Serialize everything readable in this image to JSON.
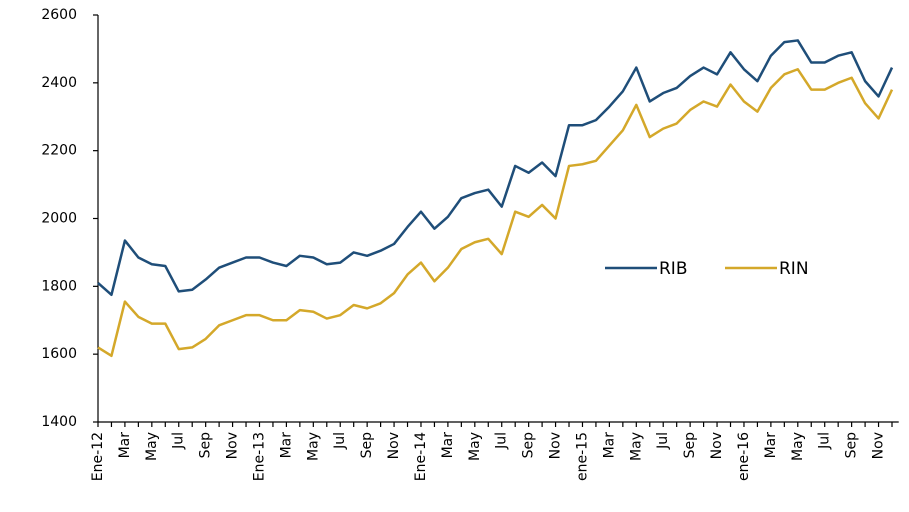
{
  "chart_data": {
    "type": "line",
    "categories": [
      "Ene-12",
      null,
      "Mar",
      null,
      "May",
      null,
      "Jul",
      null,
      "Sep",
      null,
      "Nov",
      null,
      "Ene-13",
      null,
      "Mar",
      null,
      "May",
      null,
      "Jul",
      null,
      "Sep",
      null,
      "Nov",
      null,
      "Ene-14",
      null,
      "Mar",
      null,
      "May",
      null,
      "Jul",
      null,
      "Sep",
      null,
      "Nov",
      null,
      "ene-15",
      null,
      "Mar",
      null,
      "May",
      null,
      "Jul",
      null,
      "Sep",
      null,
      "Nov",
      null,
      "ene-16",
      null,
      "Mar",
      null,
      "May",
      null,
      "Jul",
      null,
      "Sep",
      null,
      "Nov",
      null
    ],
    "series": [
      {
        "name": "RIB",
        "color": "#1f4e79",
        "values": [
          1810,
          1775,
          1935,
          1885,
          1865,
          1860,
          1785,
          1790,
          1820,
          1855,
          1870,
          1885,
          1885,
          1870,
          1860,
          1890,
          1885,
          1865,
          1870,
          1900,
          1890,
          1905,
          1925,
          1975,
          2020,
          1970,
          2005,
          2060,
          2075,
          2085,
          2035,
          2155,
          2135,
          2165,
          2125,
          2275,
          2275,
          2290,
          2330,
          2375,
          2445,
          2345,
          2370,
          2385,
          2420,
          2445,
          2425,
          2490,
          2440,
          2405,
          2480,
          2520,
          2525,
          2460,
          2460,
          2480,
          2490,
          2405,
          2360,
          2445
        ]
      },
      {
        "name": "RIN",
        "color": "#d4a82a",
        "values": [
          1620,
          1595,
          1755,
          1710,
          1690,
          1690,
          1615,
          1620,
          1645,
          1685,
          1700,
          1715,
          1715,
          1700,
          1700,
          1730,
          1725,
          1705,
          1715,
          1745,
          1735,
          1750,
          1780,
          1835,
          1870,
          1815,
          1855,
          1910,
          1930,
          1940,
          1895,
          2020,
          2005,
          2040,
          2000,
          2155,
          2160,
          2170,
          2215,
          2260,
          2335,
          2240,
          2265,
          2280,
          2320,
          2345,
          2330,
          2395,
          2345,
          2315,
          2385,
          2425,
          2440,
          2380,
          2380,
          2400,
          2415,
          2340,
          2295,
          2380
        ]
      }
    ],
    "ylim": [
      1400,
      2600
    ],
    "yticks": [
      1400,
      1600,
      1800,
      2000,
      2200,
      2400,
      2600
    ]
  }
}
